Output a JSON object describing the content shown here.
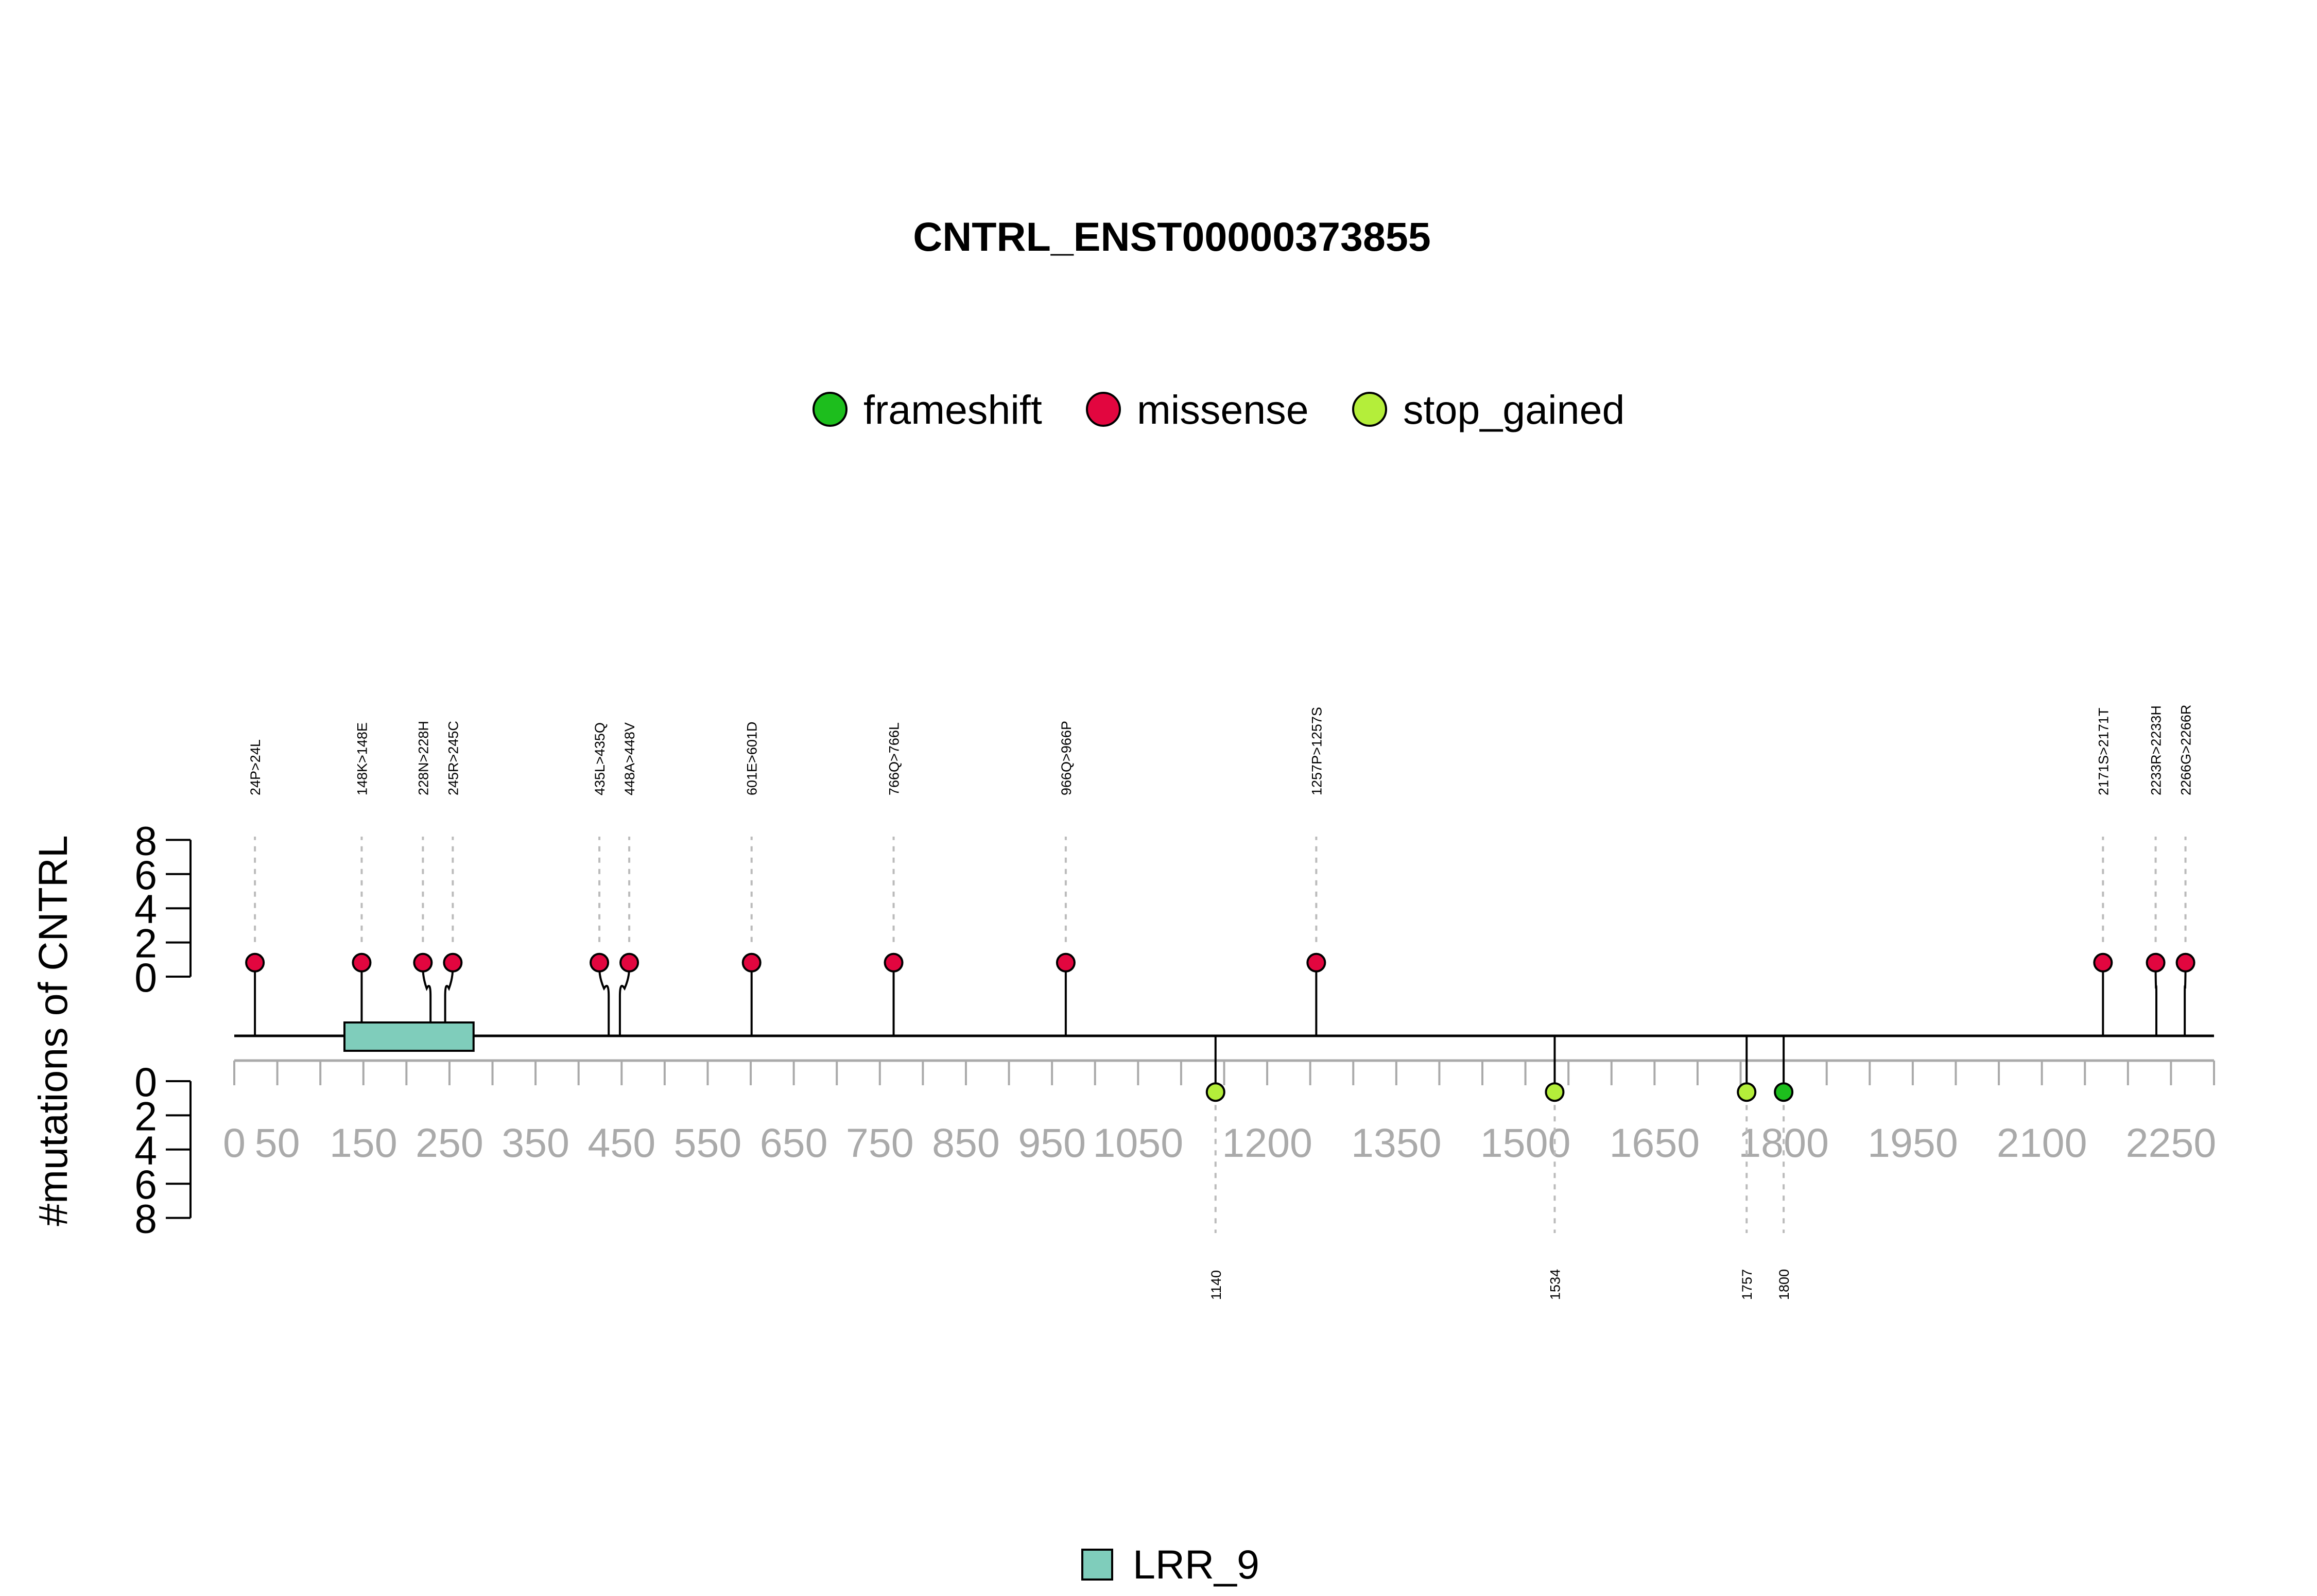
{
  "chart_data": {
    "type": "lollipop",
    "title": "CNTRL_ENST00000373855",
    "ylabel": "#mutations of CNTRL",
    "xlim": [
      0,
      2300
    ],
    "ylim_upper": [
      0,
      8
    ],
    "ylim_lower": [
      0,
      8
    ],
    "y_ticks": [
      "0",
      "2",
      "4",
      "6",
      "8"
    ],
    "x_tick_labels": [
      "0",
      "50",
      "150",
      "250",
      "350",
      "450",
      "550",
      "650",
      "750",
      "850",
      "950",
      "1050",
      "1200",
      "1350",
      "1500",
      "1650",
      "1800",
      "1950",
      "2100",
      "2250"
    ],
    "x_tick_values": [
      0,
      50,
      150,
      250,
      350,
      450,
      550,
      650,
      750,
      850,
      950,
      1050,
      1200,
      1350,
      1500,
      1650,
      1800,
      1950,
      2100,
      2250
    ],
    "minor_tick_step": 50,
    "legend": {
      "placement": "top-center",
      "entries": [
        {
          "name": "frameshift",
          "color": "#1DBE1D"
        },
        {
          "name": "missense",
          "color": "#E2063F"
        },
        {
          "name": "stop_gained",
          "color": "#B4EE3A"
        }
      ]
    },
    "upper_mutations": [
      {
        "label": "24P>24L",
        "pos": 24,
        "type": "missense",
        "count": 1
      },
      {
        "label": "148K>148E",
        "pos": 148,
        "type": "missense",
        "count": 1
      },
      {
        "label": "228N>228H",
        "pos": 228,
        "type": "missense",
        "count": 1
      },
      {
        "label": "245R>245C",
        "pos": 245,
        "type": "missense",
        "count": 1
      },
      {
        "label": "435L>435Q",
        "pos": 435,
        "type": "missense",
        "count": 1
      },
      {
        "label": "448A>448V",
        "pos": 448,
        "type": "missense",
        "count": 1
      },
      {
        "label": "601E>601D",
        "pos": 601,
        "type": "missense",
        "count": 1
      },
      {
        "label": "766Q>766L",
        "pos": 766,
        "type": "missense",
        "count": 1
      },
      {
        "label": "966Q>966P",
        "pos": 966,
        "type": "missense",
        "count": 1
      },
      {
        "label": "1257P>1257S",
        "pos": 1257,
        "type": "missense",
        "count": 1
      },
      {
        "label": "2171S>2171T",
        "pos": 2171,
        "type": "missense",
        "count": 1
      },
      {
        "label": "2233R>2233H",
        "pos": 2233,
        "type": "missense",
        "count": 1
      },
      {
        "label": "2266G>2266R",
        "pos": 2266,
        "type": "missense",
        "count": 1
      }
    ],
    "lower_mutations": [
      {
        "label": "1140",
        "pos": 1140,
        "type": "stop_gained",
        "count": 1
      },
      {
        "label": "1534",
        "pos": 1534,
        "type": "stop_gained",
        "count": 1
      },
      {
        "label": "1757",
        "pos": 1757,
        "type": "stop_gained",
        "count": 1
      },
      {
        "label": "1800",
        "pos": 1800,
        "type": "frameshift",
        "count": 1
      }
    ],
    "domains": [
      {
        "name": "LRR_9",
        "start": 128,
        "end": 278,
        "color": "#7FCDBB"
      }
    ]
  }
}
